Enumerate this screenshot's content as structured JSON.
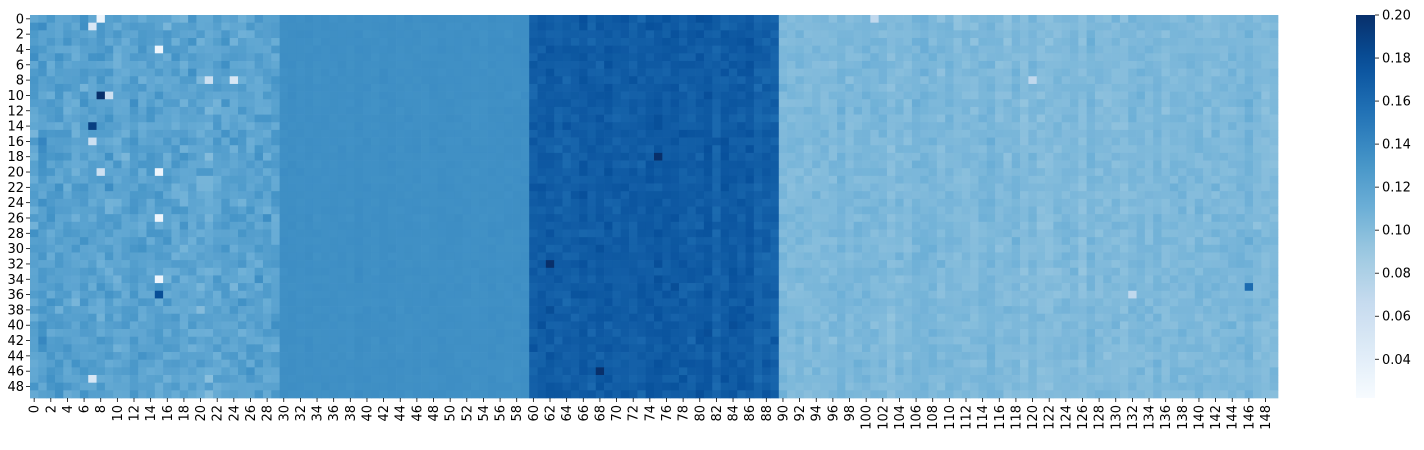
{
  "chart_data": {
    "type": "heatmap",
    "title": "",
    "xlabel": "",
    "ylabel": "",
    "n_rows": 50,
    "n_cols": 150,
    "row_tick_labels": [
      "0",
      "2",
      "4",
      "6",
      "8",
      "10",
      "12",
      "14",
      "16",
      "18",
      "20",
      "22",
      "24",
      "26",
      "28",
      "30",
      "32",
      "34",
      "36",
      "38",
      "40",
      "42",
      "44",
      "46",
      "48"
    ],
    "col_tick_labels": [
      "0",
      "2",
      "4",
      "6",
      "8",
      "10",
      "12",
      "14",
      "16",
      "18",
      "20",
      "22",
      "24",
      "26",
      "28",
      "30",
      "32",
      "34",
      "36",
      "38",
      "40",
      "42",
      "44",
      "46",
      "48",
      "50",
      "52",
      "54",
      "56",
      "58",
      "60",
      "62",
      "64",
      "66",
      "68",
      "70",
      "72",
      "74",
      "76",
      "78",
      "80",
      "82",
      "84",
      "86",
      "88",
      "90",
      "92",
      "94",
      "96",
      "98",
      "100",
      "102",
      "104",
      "106",
      "108",
      "110",
      "112",
      "114",
      "116",
      "118",
      "120",
      "122",
      "124",
      "126",
      "128",
      "130",
      "132",
      "134",
      "136",
      "138",
      "140",
      "142",
      "144",
      "146",
      "148"
    ],
    "colormap": "Blues",
    "color_range": [
      0.022,
      0.2
    ],
    "colorbar_ticks": [
      "0.04",
      "0.06",
      "0.08",
      "0.10",
      "0.12",
      "0.14",
      "0.16",
      "0.18",
      "0.20"
    ],
    "colorbar_tick_values": [
      0.04,
      0.06,
      0.08,
      0.1,
      0.12,
      0.14,
      0.16,
      0.18,
      0.2
    ],
    "column_blocks": [
      {
        "cols": [
          0,
          29
        ],
        "mean": 0.12,
        "noise": 0.018
      },
      {
        "cols": [
          30,
          59
        ],
        "mean": 0.135,
        "noise": 0.002
      },
      {
        "cols": [
          60,
          89
        ],
        "mean": 0.17,
        "noise": 0.01
      },
      {
        "cols": [
          90,
          149
        ],
        "mean": 0.103,
        "noise": 0.008
      }
    ],
    "notable_cells": [
      {
        "row": 0,
        "col": 8,
        "value": 0.03
      },
      {
        "row": 1,
        "col": 7,
        "value": 0.05
      },
      {
        "row": 4,
        "col": 15,
        "value": 0.03
      },
      {
        "row": 10,
        "col": 8,
        "value": 0.2
      },
      {
        "row": 10,
        "col": 9,
        "value": 0.06
      },
      {
        "row": 14,
        "col": 7,
        "value": 0.19
      },
      {
        "row": 20,
        "col": 15,
        "value": 0.03
      },
      {
        "row": 26,
        "col": 15,
        "value": 0.03
      },
      {
        "row": 34,
        "col": 15,
        "value": 0.03
      },
      {
        "row": 36,
        "col": 15,
        "value": 0.18
      },
      {
        "row": 47,
        "col": 7,
        "value": 0.05
      },
      {
        "row": 8,
        "col": 24,
        "value": 0.05
      },
      {
        "row": 8,
        "col": 21,
        "value": 0.06
      },
      {
        "row": 16,
        "col": 7,
        "value": 0.06
      },
      {
        "row": 20,
        "col": 8,
        "value": 0.06
      },
      {
        "row": 18,
        "col": 75,
        "value": 0.2
      },
      {
        "row": 32,
        "col": 62,
        "value": 0.2
      },
      {
        "row": 46,
        "col": 68,
        "value": 0.2
      },
      {
        "row": 8,
        "col": 120,
        "value": 0.07
      },
      {
        "row": 36,
        "col": 132,
        "value": 0.07
      },
      {
        "row": 0,
        "col": 101,
        "value": 0.07
      },
      {
        "row": 35,
        "col": 146,
        "value": 0.16
      }
    ]
  }
}
